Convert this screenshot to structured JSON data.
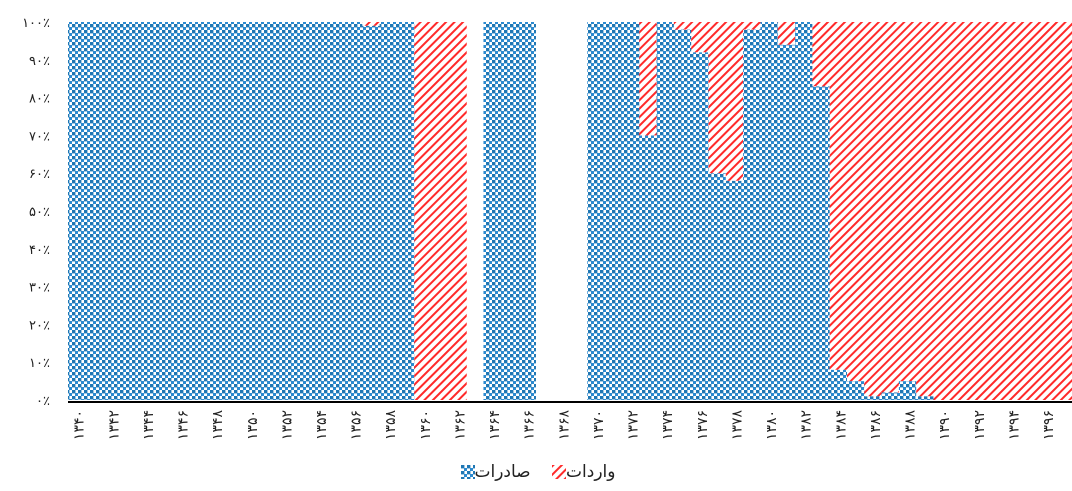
{
  "chart_data": {
    "type": "bar",
    "stacked": true,
    "percent": true,
    "title": "",
    "xlabel": "",
    "ylabel": "",
    "ylim": [
      0,
      100
    ],
    "y_ticks": [
      "۰٪",
      "۱۰٪",
      "۲۰٪",
      "۳۰٪",
      "۴۰٪",
      "۵۰٪",
      "۶۰٪",
      "۷۰٪",
      "۸۰٪",
      "۹۰٪",
      "۱۰۰٪"
    ],
    "x_tick_labels": [
      "۱۳۴۰",
      "۱۳۴۲",
      "۱۳۴۴",
      "۱۳۴۶",
      "۱۳۴۸",
      "۱۳۵۰",
      "۱۳۵۲",
      "۱۳۵۴",
      "۱۳۵۶",
      "۱۳۵۸",
      "۱۳۶۰",
      "۱۳۶۲",
      "۱۳۶۴",
      "۱۳۶۶",
      "۱۳۶۸",
      "۱۳۷۰",
      "۱۳۷۲",
      "۱۳۷۴",
      "۱۳۷۶",
      "۱۳۷۸",
      "۱۳۸۰",
      "۱۳۸۲",
      "۱۳۸۴",
      "۱۳۸۶",
      "۱۳۸۸",
      "۱۳۹۰",
      "۱۳۹۲",
      "۱۳۹۴",
      "۱۳۹۶"
    ],
    "categories": [
      "1340",
      "1341",
      "1342",
      "1343",
      "1344",
      "1345",
      "1346",
      "1347",
      "1348",
      "1349",
      "1350",
      "1351",
      "1352",
      "1353",
      "1354",
      "1355",
      "1356",
      "1357",
      "1358",
      "1359",
      "1360",
      "1361",
      "1362",
      "1363",
      "1364",
      "1365",
      "1366",
      "1367",
      "1368",
      "1369",
      "1370",
      "1371",
      "1372",
      "1373",
      "1374",
      "1375",
      "1376",
      "1377",
      "1378",
      "1379",
      "1380",
      "1381",
      "1382",
      "1383",
      "1384",
      "1385",
      "1386",
      "1387",
      "1388",
      "1389",
      "1390",
      "1391",
      "1392",
      "1393",
      "1394",
      "1395",
      "1396",
      "1397"
    ],
    "series": [
      {
        "name": "صادرات",
        "values": [
          100,
          100,
          100,
          100,
          100,
          100,
          100,
          100,
          100,
          100,
          100,
          100,
          100,
          100,
          100,
          100,
          100,
          99,
          100,
          100,
          0,
          0,
          0,
          0,
          100,
          100,
          100,
          0,
          0,
          0,
          100,
          100,
          100,
          70,
          100,
          98,
          92,
          60,
          58,
          98,
          100,
          94,
          100,
          83,
          8,
          5,
          1,
          2,
          5,
          1,
          0,
          0,
          0,
          0,
          0,
          0,
          0,
          0
        ]
      },
      {
        "name": "واردات",
        "values": [
          0,
          0,
          0,
          0,
          0,
          0,
          0,
          0,
          0,
          0,
          0,
          0,
          0,
          0,
          0,
          0,
          0,
          1,
          0,
          0,
          100,
          100,
          100,
          0,
          0,
          0,
          0,
          0,
          0,
          0,
          0,
          0,
          0,
          30,
          0,
          2,
          8,
          40,
          42,
          2,
          0,
          6,
          0,
          17,
          92,
          95,
          99,
          98,
          95,
          99,
          100,
          100,
          100,
          100,
          100,
          100,
          100,
          100
        ]
      }
    ],
    "colors": {
      "exports": "#1f77b4",
      "imports": "#ff2a2a"
    },
    "legend_position": "bottom"
  },
  "legend": {
    "imports_label": "واردات",
    "exports_label": "صادرات"
  }
}
